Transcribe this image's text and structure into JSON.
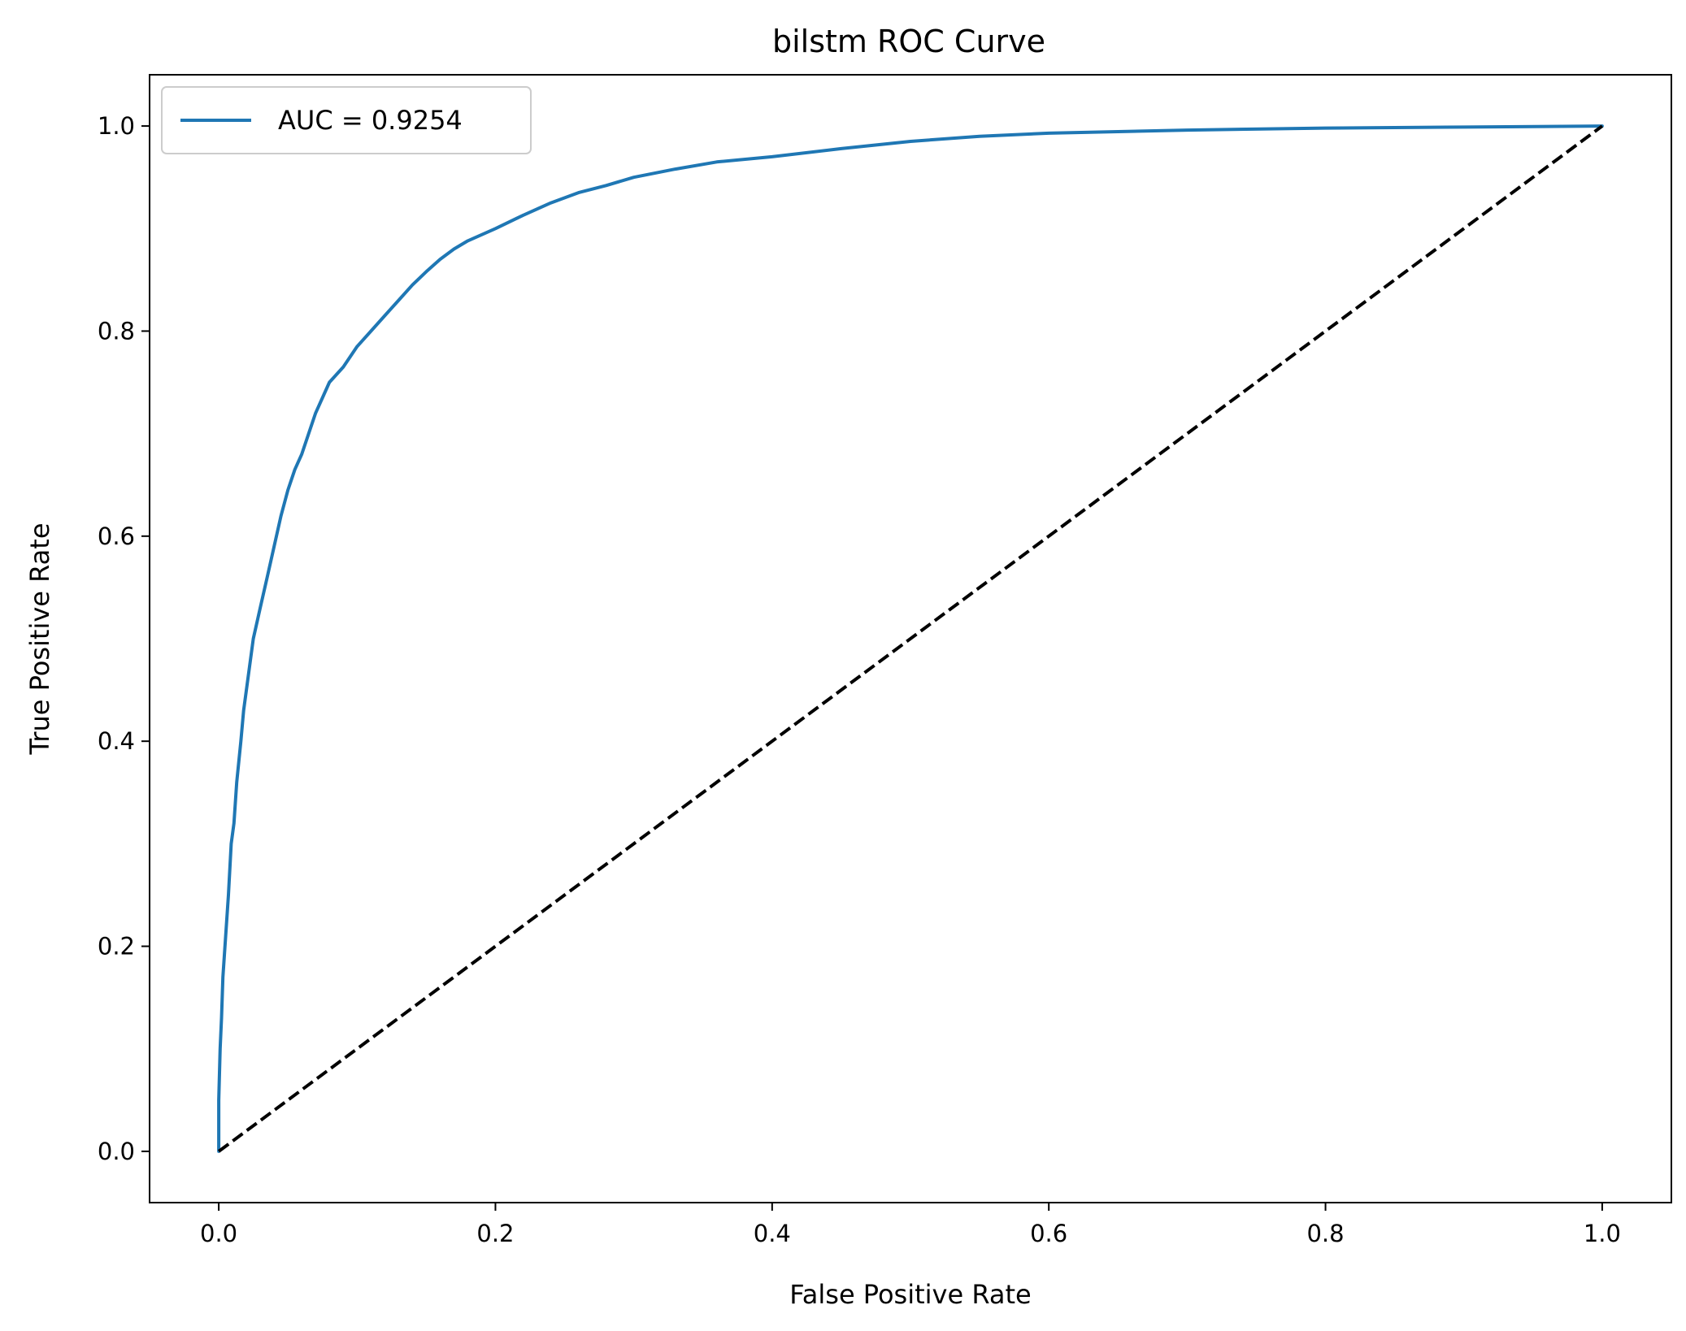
{
  "chart_data": {
    "type": "line",
    "title": "bilstm ROC Curve",
    "xlabel": "False Positive Rate",
    "ylabel": "True Positive Rate",
    "xlim": [
      -0.05,
      1.05
    ],
    "ylim": [
      -0.05,
      1.05
    ],
    "xticks": [
      "0.0",
      "0.2",
      "0.4",
      "0.6",
      "0.8",
      "1.0"
    ],
    "yticks": [
      "0.0",
      "0.2",
      "0.4",
      "0.6",
      "0.8",
      "1.0"
    ],
    "grid": false,
    "legend_position": "top-left",
    "colors": {
      "roc": "#1f77b4",
      "baseline": "#000000"
    },
    "series": [
      {
        "name": "AUC = 0.9254",
        "style": "solid",
        "x": [
          0.0,
          0.0,
          0.001,
          0.002,
          0.003,
          0.005,
          0.007,
          0.009,
          0.011,
          0.013,
          0.016,
          0.018,
          0.021,
          0.025,
          0.03,
          0.035,
          0.04,
          0.045,
          0.05,
          0.055,
          0.06,
          0.065,
          0.07,
          0.075,
          0.08,
          0.09,
          0.1,
          0.11,
          0.12,
          0.13,
          0.14,
          0.15,
          0.16,
          0.17,
          0.18,
          0.2,
          0.22,
          0.24,
          0.26,
          0.28,
          0.3,
          0.33,
          0.36,
          0.4,
          0.45,
          0.5,
          0.55,
          0.6,
          0.7,
          0.8,
          0.9,
          1.0
        ],
        "y": [
          0.0,
          0.05,
          0.1,
          0.13,
          0.17,
          0.21,
          0.25,
          0.3,
          0.32,
          0.36,
          0.4,
          0.43,
          0.46,
          0.5,
          0.53,
          0.56,
          0.59,
          0.62,
          0.645,
          0.665,
          0.68,
          0.7,
          0.72,
          0.735,
          0.75,
          0.765,
          0.785,
          0.8,
          0.815,
          0.83,
          0.845,
          0.858,
          0.87,
          0.88,
          0.888,
          0.9,
          0.913,
          0.925,
          0.935,
          0.942,
          0.95,
          0.958,
          0.965,
          0.97,
          0.978,
          0.985,
          0.99,
          0.993,
          0.996,
          0.998,
          0.999,
          1.0
        ]
      },
      {
        "style": "dashed",
        "x": [
          0.0,
          1.0
        ],
        "y": [
          0.0,
          1.0
        ]
      }
    ]
  }
}
